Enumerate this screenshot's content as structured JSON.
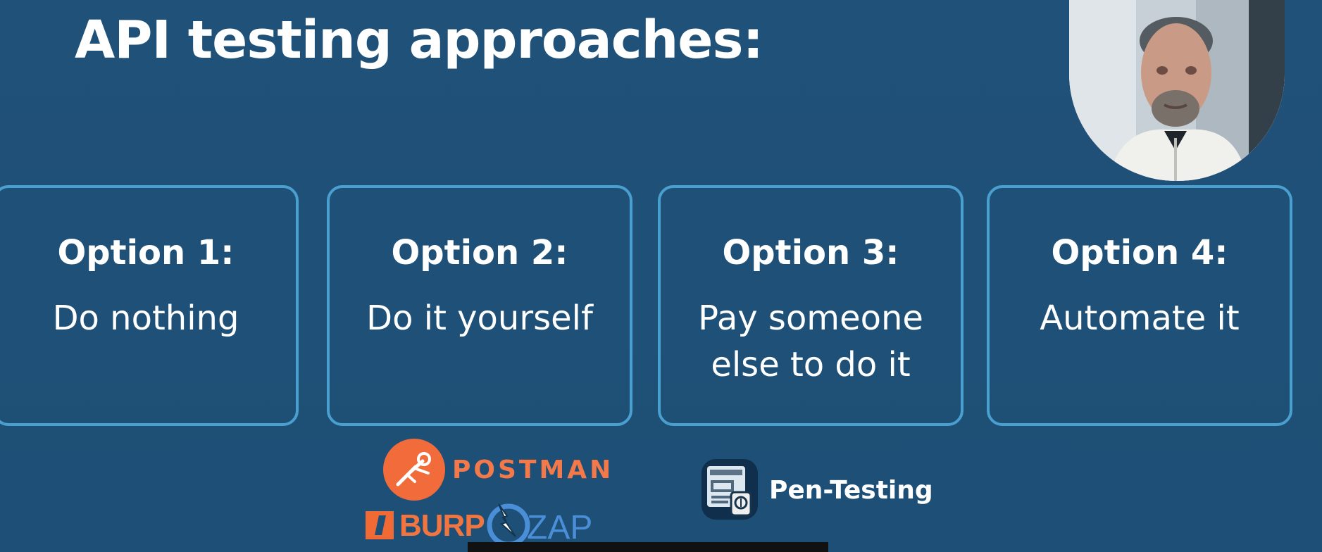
{
  "slide": {
    "title": "API testing approaches:",
    "cards": [
      {
        "heading": "Option 1:",
        "text": "Do nothing"
      },
      {
        "heading": "Option 2:",
        "text": "Do it yourself"
      },
      {
        "heading": "Option 3:",
        "text": "Pay someone\nelse to do it"
      },
      {
        "heading": "Option 4:",
        "text": "Automate it"
      }
    ],
    "logos": {
      "postman": "POSTMAN",
      "burp": "BURP",
      "zap": "ZAP"
    },
    "pentest": {
      "label": "Pen-Testing"
    }
  },
  "colors": {
    "background": "#1f4f77",
    "card_border": "#4a9fd1",
    "postman_orange": "#f26b3a",
    "zap_blue": "#4a8ed8"
  },
  "icons": {
    "postman": "postman-logo",
    "burp": "burp-logo",
    "zap": "zap-logo",
    "pentest": "pentest-document-icon",
    "presenter": "presenter-webcam-image"
  }
}
